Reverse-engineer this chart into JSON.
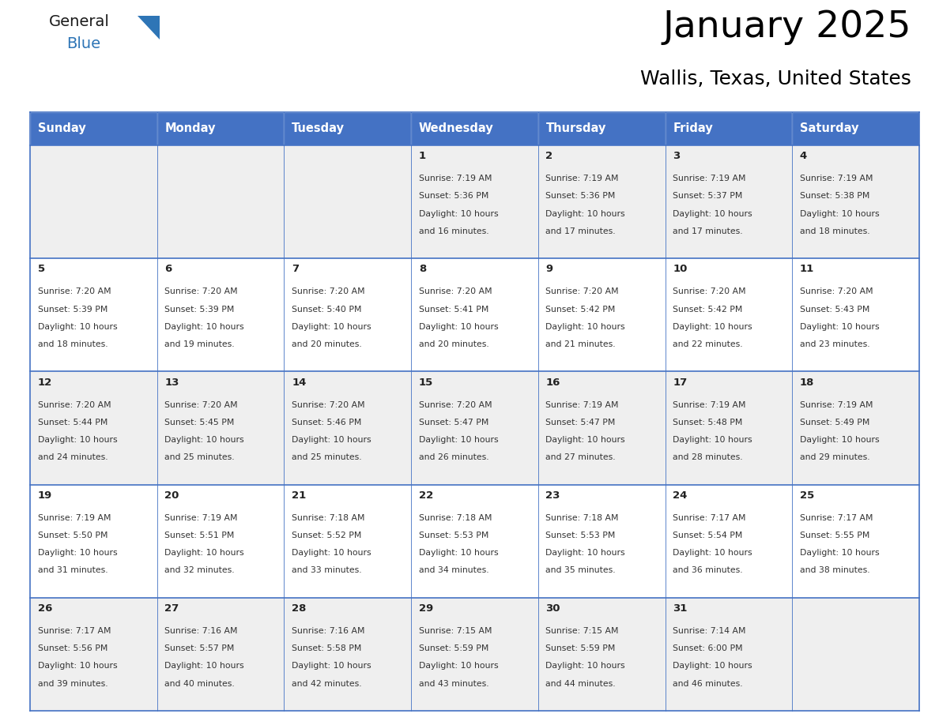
{
  "title": "January 2025",
  "subtitle": "Wallis, Texas, United States",
  "header_bg_color": "#4472C4",
  "header_text_color": "#FFFFFF",
  "header_font_size": 10.5,
  "cell_bg_even": "#FFFFFF",
  "cell_bg_odd": "#EFEFEF",
  "day_names": [
    "Sunday",
    "Monday",
    "Tuesday",
    "Wednesday",
    "Thursday",
    "Friday",
    "Saturday"
  ],
  "title_font_size": 34,
  "subtitle_font_size": 18,
  "weeks": [
    [
      {
        "day": null,
        "sunrise": null,
        "sunset": null,
        "daylight": null
      },
      {
        "day": null,
        "sunrise": null,
        "sunset": null,
        "daylight": null
      },
      {
        "day": null,
        "sunrise": null,
        "sunset": null,
        "daylight": null
      },
      {
        "day": 1,
        "sunrise": "7:19 AM",
        "sunset": "5:36 PM",
        "daylight": "10 hours and 16 minutes."
      },
      {
        "day": 2,
        "sunrise": "7:19 AM",
        "sunset": "5:36 PM",
        "daylight": "10 hours and 17 minutes."
      },
      {
        "day": 3,
        "sunrise": "7:19 AM",
        "sunset": "5:37 PM",
        "daylight": "10 hours and 17 minutes."
      },
      {
        "day": 4,
        "sunrise": "7:19 AM",
        "sunset": "5:38 PM",
        "daylight": "10 hours and 18 minutes."
      }
    ],
    [
      {
        "day": 5,
        "sunrise": "7:20 AM",
        "sunset": "5:39 PM",
        "daylight": "10 hours and 18 minutes."
      },
      {
        "day": 6,
        "sunrise": "7:20 AM",
        "sunset": "5:39 PM",
        "daylight": "10 hours and 19 minutes."
      },
      {
        "day": 7,
        "sunrise": "7:20 AM",
        "sunset": "5:40 PM",
        "daylight": "10 hours and 20 minutes."
      },
      {
        "day": 8,
        "sunrise": "7:20 AM",
        "sunset": "5:41 PM",
        "daylight": "10 hours and 20 minutes."
      },
      {
        "day": 9,
        "sunrise": "7:20 AM",
        "sunset": "5:42 PM",
        "daylight": "10 hours and 21 minutes."
      },
      {
        "day": 10,
        "sunrise": "7:20 AM",
        "sunset": "5:42 PM",
        "daylight": "10 hours and 22 minutes."
      },
      {
        "day": 11,
        "sunrise": "7:20 AM",
        "sunset": "5:43 PM",
        "daylight": "10 hours and 23 minutes."
      }
    ],
    [
      {
        "day": 12,
        "sunrise": "7:20 AM",
        "sunset": "5:44 PM",
        "daylight": "10 hours and 24 minutes."
      },
      {
        "day": 13,
        "sunrise": "7:20 AM",
        "sunset": "5:45 PM",
        "daylight": "10 hours and 25 minutes."
      },
      {
        "day": 14,
        "sunrise": "7:20 AM",
        "sunset": "5:46 PM",
        "daylight": "10 hours and 25 minutes."
      },
      {
        "day": 15,
        "sunrise": "7:20 AM",
        "sunset": "5:47 PM",
        "daylight": "10 hours and 26 minutes."
      },
      {
        "day": 16,
        "sunrise": "7:19 AM",
        "sunset": "5:47 PM",
        "daylight": "10 hours and 27 minutes."
      },
      {
        "day": 17,
        "sunrise": "7:19 AM",
        "sunset": "5:48 PM",
        "daylight": "10 hours and 28 minutes."
      },
      {
        "day": 18,
        "sunrise": "7:19 AM",
        "sunset": "5:49 PM",
        "daylight": "10 hours and 29 minutes."
      }
    ],
    [
      {
        "day": 19,
        "sunrise": "7:19 AM",
        "sunset": "5:50 PM",
        "daylight": "10 hours and 31 minutes."
      },
      {
        "day": 20,
        "sunrise": "7:19 AM",
        "sunset": "5:51 PM",
        "daylight": "10 hours and 32 minutes."
      },
      {
        "day": 21,
        "sunrise": "7:18 AM",
        "sunset": "5:52 PM",
        "daylight": "10 hours and 33 minutes."
      },
      {
        "day": 22,
        "sunrise": "7:18 AM",
        "sunset": "5:53 PM",
        "daylight": "10 hours and 34 minutes."
      },
      {
        "day": 23,
        "sunrise": "7:18 AM",
        "sunset": "5:53 PM",
        "daylight": "10 hours and 35 minutes."
      },
      {
        "day": 24,
        "sunrise": "7:17 AM",
        "sunset": "5:54 PM",
        "daylight": "10 hours and 36 minutes."
      },
      {
        "day": 25,
        "sunrise": "7:17 AM",
        "sunset": "5:55 PM",
        "daylight": "10 hours and 38 minutes."
      }
    ],
    [
      {
        "day": 26,
        "sunrise": "7:17 AM",
        "sunset": "5:56 PM",
        "daylight": "10 hours and 39 minutes."
      },
      {
        "day": 27,
        "sunrise": "7:16 AM",
        "sunset": "5:57 PM",
        "daylight": "10 hours and 40 minutes."
      },
      {
        "day": 28,
        "sunrise": "7:16 AM",
        "sunset": "5:58 PM",
        "daylight": "10 hours and 42 minutes."
      },
      {
        "day": 29,
        "sunrise": "7:15 AM",
        "sunset": "5:59 PM",
        "daylight": "10 hours and 43 minutes."
      },
      {
        "day": 30,
        "sunrise": "7:15 AM",
        "sunset": "5:59 PM",
        "daylight": "10 hours and 44 minutes."
      },
      {
        "day": 31,
        "sunrise": "7:14 AM",
        "sunset": "6:00 PM",
        "daylight": "10 hours and 46 minutes."
      },
      {
        "day": null,
        "sunrise": null,
        "sunset": null,
        "daylight": null
      }
    ]
  ],
  "line_color": "#4472C4",
  "logo_general_color": "#1a1a1a",
  "logo_blue_color": "#2E75B6",
  "logo_triangle_color": "#2E75B6"
}
